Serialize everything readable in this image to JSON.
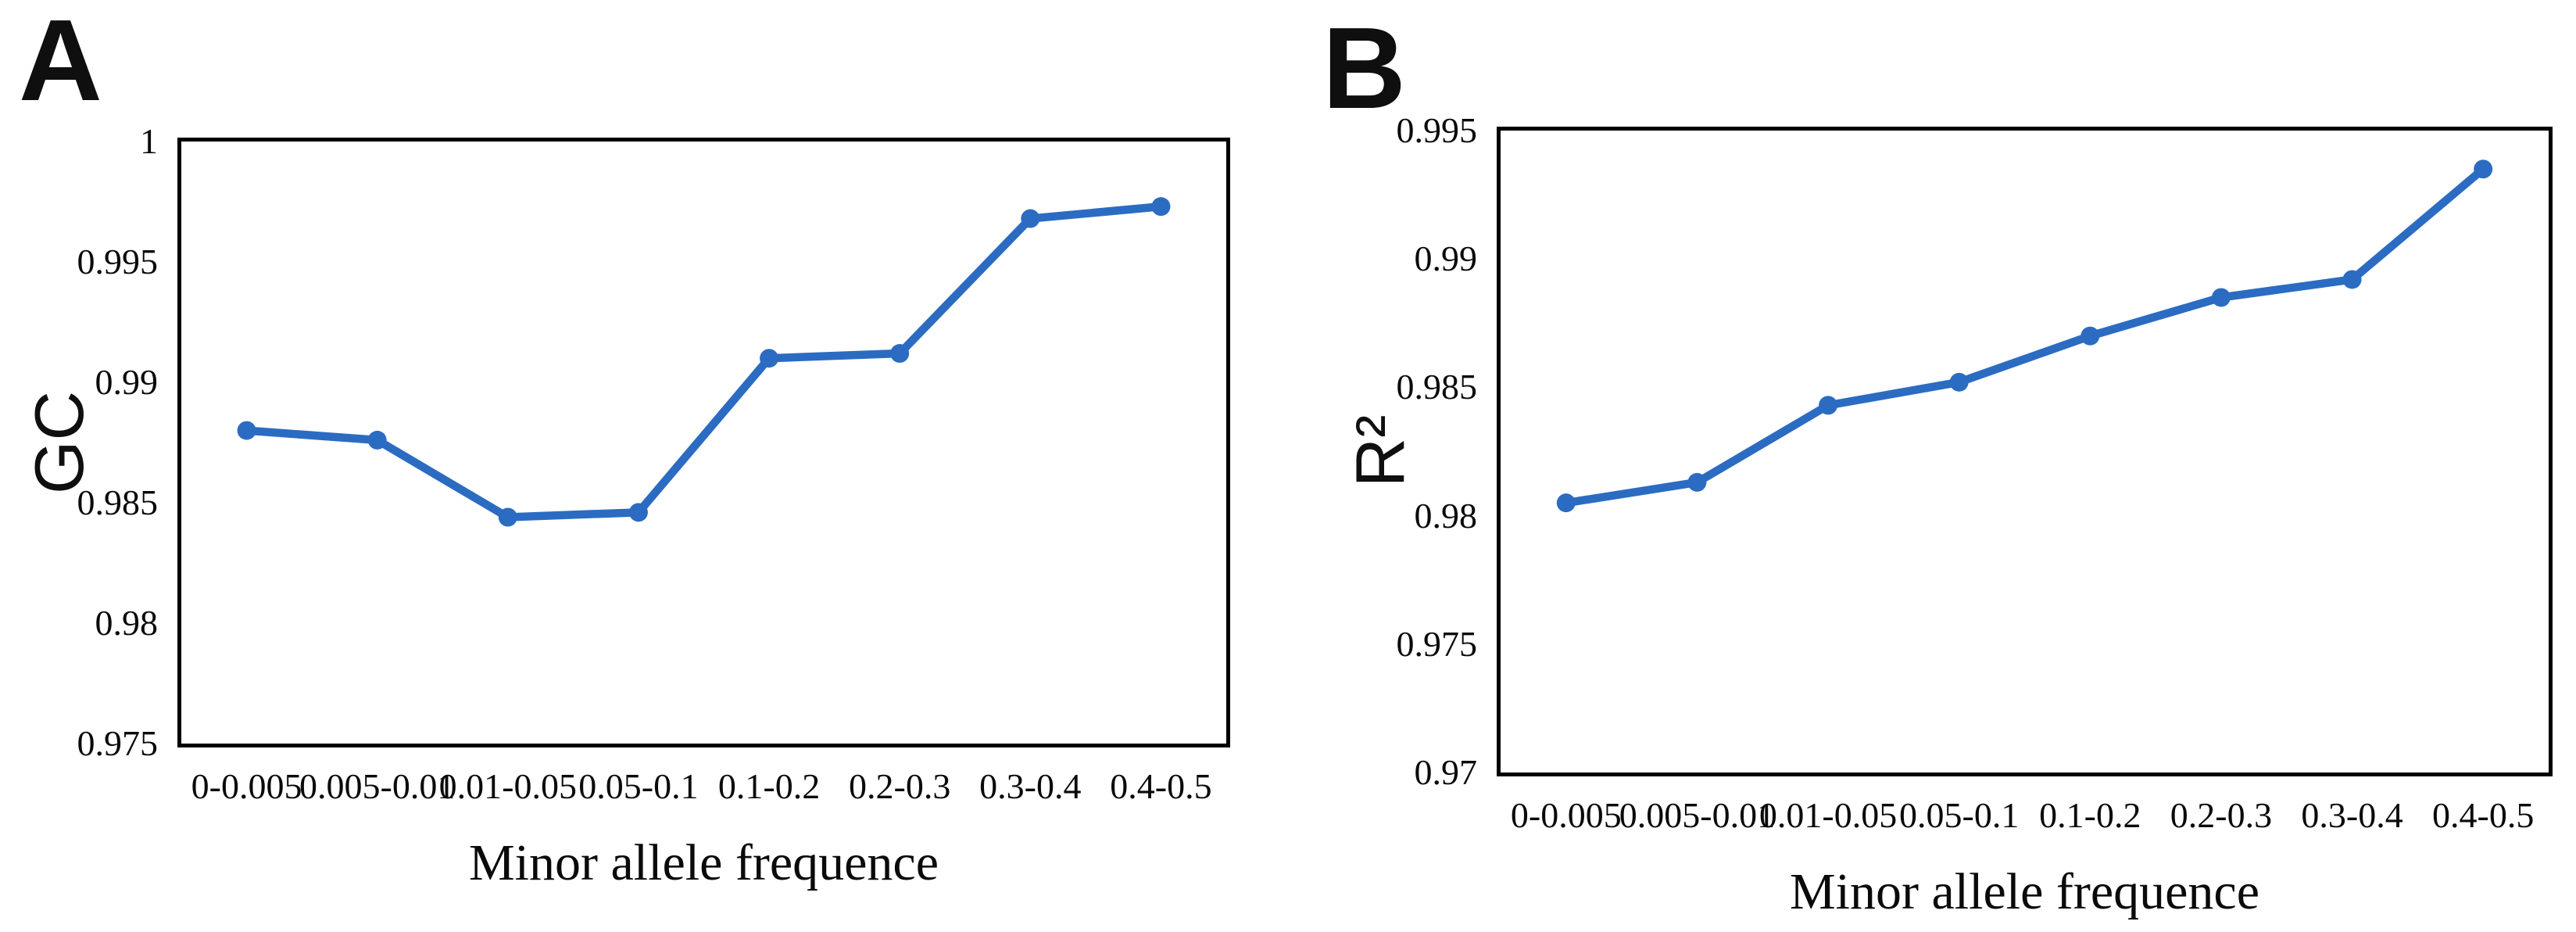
{
  "chart_data": [
    {
      "type": "line",
      "panel_label": "A",
      "ylabel": "GC",
      "xlabel": "Minor allele frequence",
      "categories": [
        "0-0.005",
        "0.005-0.01",
        "0.01-0.05",
        "0.05-0.1",
        "0.1-0.2",
        "0.2-0.3",
        "0.3-0.4",
        "0.4-0.5"
      ],
      "values": [
        0.988,
        0.9876,
        0.9844,
        0.9846,
        0.991,
        0.9912,
        0.9968,
        0.9973
      ],
      "ylim": [
        0.975,
        1
      ],
      "y_ticks": [
        {
          "label": "1",
          "value": 1
        },
        {
          "label": "0.995",
          "value": 0.995
        },
        {
          "label": "0.99",
          "value": 0.99
        },
        {
          "label": "0.985",
          "value": 0.985
        },
        {
          "label": "0.98",
          "value": 0.98
        },
        {
          "label": "0.975",
          "value": 0.975
        }
      ],
      "line_color": "#2b6cc2",
      "marker": "circle",
      "grid": false,
      "legend": false
    },
    {
      "type": "line",
      "panel_label": "B",
      "ylabel": "R²",
      "xlabel": "Minor allele frequence",
      "categories": [
        "0-0.005",
        "0.005-0.01",
        "0.01-0.05",
        "0.05-0.1",
        "0.1-0.2",
        "0.2-0.3",
        "0.3-0.4",
        "0.4-0.5"
      ],
      "values": [
        0.9805,
        0.9813,
        0.9843,
        0.9852,
        0.987,
        0.9885,
        0.9892,
        0.9935
      ],
      "ylim": [
        0.97,
        0.995
      ],
      "y_ticks": [
        {
          "label": "0.995",
          "value": 0.995
        },
        {
          "label": "0.99",
          "value": 0.99
        },
        {
          "label": "0.985",
          "value": 0.985
        },
        {
          "label": "0.98",
          "value": 0.98
        },
        {
          "label": "0.975",
          "value": 0.975
        },
        {
          "label": "0.97",
          "value": 0.97
        }
      ],
      "line_color": "#2b6cc2",
      "marker": "circle",
      "grid": false,
      "legend": false
    }
  ]
}
